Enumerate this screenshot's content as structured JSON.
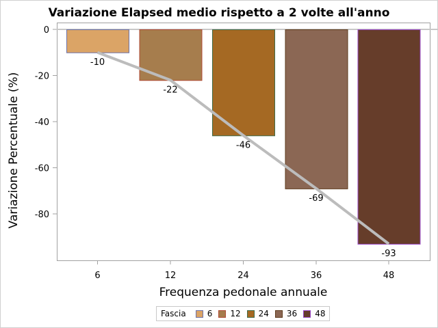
{
  "chart_data": {
    "type": "bar",
    "title": "Variazione Elapsed medio rispetto a 2 volte all'anno",
    "xlabel": "Frequenza pedonale annuale",
    "ylabel": "Variazione Percentuale (%)",
    "categories": [
      "6",
      "12",
      "24",
      "36",
      "48"
    ],
    "values": [
      -10,
      -22,
      -46,
      -69,
      -93
    ],
    "data_labels": [
      "-10",
      "-22",
      "-46",
      "-69",
      "-93"
    ],
    "overlay_line": {
      "type": "line",
      "color": "#bcbcbc",
      "values": [
        -10,
        -22,
        -46,
        -69,
        -93
      ]
    },
    "ylim": [
      -98,
      3
    ],
    "yticks": [
      0,
      -20,
      -40,
      -60,
      -80
    ],
    "ytick_labels": [
      "0",
      "-20",
      "-40",
      "-60",
      "-80"
    ],
    "grid": false,
    "legend": {
      "title": "Fascia",
      "position": "bottom",
      "entries": [
        {
          "label": "6",
          "fill": "#DBA466",
          "edge": "#6C71A8"
        },
        {
          "label": "12",
          "fill": "#A67D4D",
          "edge": "#B04A35"
        },
        {
          "label": "24",
          "fill": "#A56923",
          "edge": "#3E6B48"
        },
        {
          "label": "36",
          "fill": "#8B6754",
          "edge": "#5E3B1C"
        },
        {
          "label": "48",
          "fill": "#663D2A",
          "edge": "#9A48C8"
        }
      ]
    }
  }
}
